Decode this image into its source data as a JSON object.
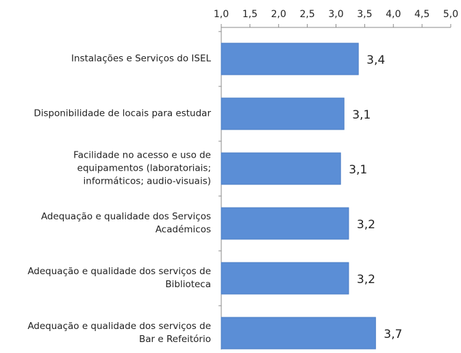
{
  "chart_data": {
    "type": "bar",
    "orientation": "horizontal",
    "categories": [
      "Instalações e Serviços do ISEL",
      "Disponibilidade de locais para estudar",
      "Facilidade no acesso e uso de\nequipamentos (laboratoriais;\ninformáticos; audio-visuais)",
      "Adequação e qualidade dos Serviços\nAcadémicos",
      "Adequação e qualidade dos serviços de\nBiblioteca",
      "Adequação e qualidade dos serviços de\nBar e Refeitório"
    ],
    "values": [
      3.39,
      3.14,
      3.08,
      3.22,
      3.22,
      3.69
    ],
    "value_labels": [
      "3,4",
      "3,1",
      "3,1",
      "3,2",
      "3,2",
      "3,7"
    ],
    "color": "#5b8ed6",
    "xlim": [
      1,
      5
    ],
    "xticks": [
      {
        "value": 1,
        "label": "1,0"
      },
      {
        "value": 1.5,
        "label": "1,5"
      },
      {
        "value": 2,
        "label": "2,0"
      },
      {
        "value": 2.5,
        "label": "2,5"
      },
      {
        "value": 3,
        "label": "3,0"
      },
      {
        "value": 3.5,
        "label": "3,5"
      },
      {
        "value": 4,
        "label": "4,0"
      },
      {
        "value": 4.5,
        "label": "4,5"
      },
      {
        "value": 5,
        "label": "5,0"
      }
    ],
    "grid": false
  }
}
